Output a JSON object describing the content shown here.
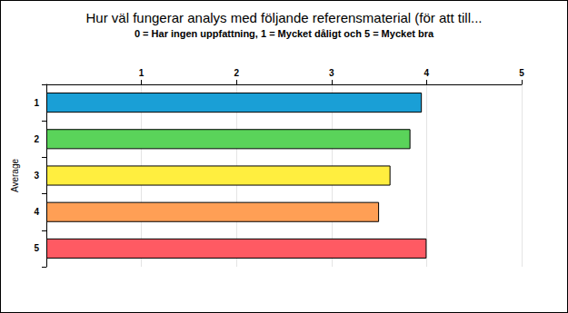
{
  "chart_data": {
    "type": "bar",
    "title": "Hur väl fungerar analys med följande referensmaterial (för att till...",
    "subtitle": "0 = Har ingen uppfattning, 1 = Mycket dåligt och 5 = Mycket bra",
    "y_label": "Average",
    "orientation": "horizontal",
    "categories": [
      "1",
      "2",
      "3",
      "4",
      "5"
    ],
    "values": [
      3.95,
      3.83,
      3.62,
      3.5,
      4.0
    ],
    "colors": [
      "#1a9fd6",
      "#5ad35a",
      "#ffee3f",
      "#ff9f55",
      "#ff5a63"
    ],
    "xlim": [
      0,
      5
    ],
    "xticks": [
      1,
      2,
      3,
      4,
      5
    ],
    "grid": true
  }
}
